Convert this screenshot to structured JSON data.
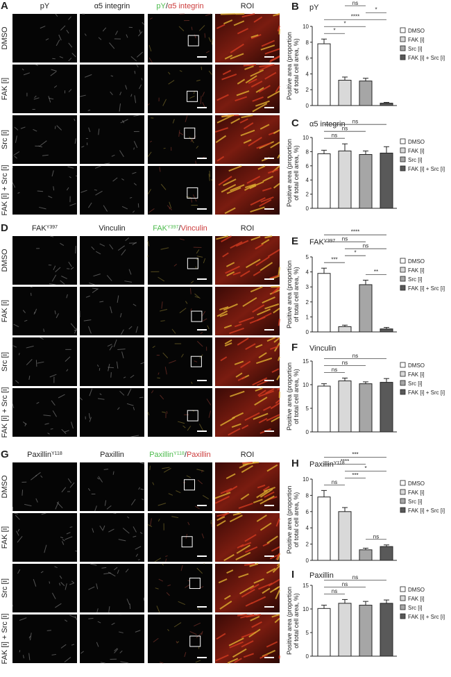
{
  "image_panels": [
    {
      "letter": "A",
      "columns": [
        [
          {
            "text": "pY"
          }
        ],
        [
          {
            "text": "α5 integrin"
          }
        ],
        [
          {
            "text": "pY",
            "color": "#4cbb4c"
          },
          {
            "text": "/"
          },
          {
            "text": "α5 integrin",
            "color": "#cc3b3b"
          }
        ],
        [
          {
            "text": "ROI"
          }
        ]
      ],
      "rows": [
        "DMSO",
        "FAK [i]",
        "Src [i]",
        "FAK [i] + Src [i]"
      ]
    },
    {
      "letter": "D",
      "columns": [
        [
          {
            "text": "FAK"
          },
          {
            "text": "Y397",
            "sup": true
          }
        ],
        [
          {
            "text": "Vinculin"
          }
        ],
        [
          {
            "text": "FAK",
            "color": "#4cbb4c"
          },
          {
            "text": "Y397",
            "sup": true,
            "color": "#4cbb4c"
          },
          {
            "text": "/"
          },
          {
            "text": "Vinculin",
            "color": "#cc3b3b"
          }
        ],
        [
          {
            "text": "ROI"
          }
        ]
      ],
      "rows": [
        "DMSO",
        "FAK [i]",
        "Src [i]",
        "FAK [i] + Src [i]"
      ]
    },
    {
      "letter": "G",
      "columns": [
        [
          {
            "text": "Paxillin"
          },
          {
            "text": "Y118",
            "sup": true
          }
        ],
        [
          {
            "text": "Paxillin"
          }
        ],
        [
          {
            "text": "Paxillin",
            "color": "#4cbb4c"
          },
          {
            "text": "Y118",
            "sup": true,
            "color": "#4cbb4c"
          },
          {
            "text": "/"
          },
          {
            "text": "Paxillin",
            "color": "#cc3b3b"
          }
        ],
        [
          {
            "text": "ROI"
          }
        ]
      ],
      "rows": [
        "DMSO",
        "FAK [i]",
        "Src [i]",
        "FAK [i] + Src [i]"
      ]
    }
  ],
  "chart_data": [
    {
      "type": "bar",
      "letter": "B",
      "title": "pY",
      "ylabel": [
        "Positive area (proportion",
        "of total cell area, %)"
      ],
      "categories": [
        "DMSO",
        "FAK [i]",
        "Src [i]",
        "FAK [i] + Src [i]"
      ],
      "colors": [
        "#ffffff",
        "#d9d9d9",
        "#a6a6a6",
        "#595959"
      ],
      "values": [
        7.8,
        3.2,
        3.1,
        0.3
      ],
      "errors": [
        0.6,
        0.4,
        0.35,
        0.1
      ],
      "ylim": [
        0,
        10
      ],
      "yticks": [
        0,
        2,
        4,
        6,
        8,
        10
      ],
      "brackets": [
        {
          "pair": [
            0,
            1
          ],
          "label": "*"
        },
        {
          "pair": [
            0,
            2
          ],
          "label": "*"
        },
        {
          "pair": [
            0,
            3
          ],
          "label": "****"
        },
        {
          "pair": [
            2,
            3
          ],
          "label": "*"
        },
        {
          "pair": [
            1,
            2
          ],
          "label": "ns"
        },
        {
          "pair": [
            1,
            3
          ],
          "label": "*"
        }
      ]
    },
    {
      "type": "bar",
      "letter": "C",
      "title": "α5 integrin",
      "ylabel": [
        "Positive area (proportion",
        "of total cell area, %)"
      ],
      "categories": [
        "DMSO",
        "FAK [i]",
        "Src [i]",
        "FAK [i] + Src [i]"
      ],
      "colors": [
        "#ffffff",
        "#d9d9d9",
        "#a6a6a6",
        "#595959"
      ],
      "values": [
        7.7,
        8.1,
        7.6,
        7.8
      ],
      "errors": [
        0.5,
        1.0,
        0.5,
        0.9
      ],
      "ylim": [
        0,
        10
      ],
      "yticks": [
        0,
        2,
        4,
        6,
        8,
        10
      ],
      "brackets": [
        {
          "pair": [
            0,
            1
          ],
          "label": "ns"
        },
        {
          "pair": [
            0,
            2
          ],
          "label": "ns"
        },
        {
          "pair": [
            0,
            3
          ],
          "label": "ns"
        }
      ]
    },
    {
      "type": "bar",
      "letter": "E",
      "title": "FAK",
      "title_sup": "Y397",
      "ylabel": [
        "Positive area (proportion",
        "of total cell area, %)"
      ],
      "categories": [
        "DMSO",
        "FAK [i]",
        "Src [i]",
        "FAK [i] + Src [i]"
      ],
      "colors": [
        "#ffffff",
        "#d9d9d9",
        "#a6a6a6",
        "#595959"
      ],
      "values": [
        3.9,
        0.35,
        3.15,
        0.2
      ],
      "errors": [
        0.35,
        0.1,
        0.3,
        0.1
      ],
      "ylim": [
        0,
        5
      ],
      "yticks": [
        0,
        1,
        2,
        3,
        4,
        5
      ],
      "brackets": [
        {
          "pair": [
            0,
            1
          ],
          "label": "***"
        },
        {
          "pair": [
            2,
            3
          ],
          "label": "**"
        },
        {
          "pair": [
            1,
            2
          ],
          "label": "*"
        },
        {
          "pair": [
            1,
            3
          ],
          "label": "ns"
        },
        {
          "pair": [
            0,
            2
          ],
          "label": "ns"
        },
        {
          "pair": [
            0,
            3
          ],
          "label": "****"
        }
      ]
    },
    {
      "type": "bar",
      "letter": "F",
      "title": "Vinculin",
      "ylabel": [
        "Positive area (proportion",
        "of total cell area, %)"
      ],
      "categories": [
        "DMSO",
        "FAK [i]",
        "Src [i]",
        "FAK [i] + Src [i]"
      ],
      "colors": [
        "#ffffff",
        "#d9d9d9",
        "#a6a6a6",
        "#595959"
      ],
      "values": [
        9.7,
        10.8,
        10.2,
        10.5
      ],
      "errors": [
        0.5,
        0.6,
        0.4,
        0.8
      ],
      "ylim": [
        0,
        15
      ],
      "yticks": [
        0,
        5,
        10,
        15
      ],
      "brackets": [
        {
          "pair": [
            0,
            1
          ],
          "label": "ns"
        },
        {
          "pair": [
            0,
            2
          ],
          "label": "ns"
        },
        {
          "pair": [
            0,
            3
          ],
          "label": "ns"
        }
      ]
    },
    {
      "type": "bar",
      "letter": "H",
      "title": "Paxillin",
      "title_sup": "Y118",
      "ylabel": [
        "Positive area (proportion",
        "of total cell area, %)"
      ],
      "categories": [
        "DMSO",
        "FAK [i]",
        "Src [i]",
        "FAK [i] + Src [i]"
      ],
      "colors": [
        "#ffffff",
        "#d9d9d9",
        "#a6a6a6",
        "#595959"
      ],
      "values": [
        7.8,
        6.0,
        1.3,
        1.7
      ],
      "errors": [
        0.8,
        0.5,
        0.2,
        0.2
      ],
      "ylim": [
        0,
        10
      ],
      "yticks": [
        0,
        2,
        4,
        6,
        8,
        10
      ],
      "brackets": [
        {
          "pair": [
            2,
            3
          ],
          "label": "ns"
        },
        {
          "pair": [
            0,
            1
          ],
          "label": "ns"
        },
        {
          "pair": [
            1,
            2
          ],
          "label": "***"
        },
        {
          "pair": [
            1,
            3
          ],
          "label": "*"
        },
        {
          "pair": [
            0,
            2
          ],
          "label": "****"
        },
        {
          "pair": [
            0,
            3
          ],
          "label": "***"
        }
      ]
    },
    {
      "type": "bar",
      "letter": "I",
      "title": "Paxillin",
      "ylabel": [
        "Positive area (proportion",
        "of total cell area, %)"
      ],
      "categories": [
        "DMSO",
        "FAK [i]",
        "Src [i]",
        "FAK [i] + Src [i]"
      ],
      "colors": [
        "#ffffff",
        "#d9d9d9",
        "#a6a6a6",
        "#595959"
      ],
      "values": [
        10.1,
        11.2,
        10.8,
        11.2
      ],
      "errors": [
        0.7,
        0.8,
        0.8,
        0.7
      ],
      "ylim": [
        0,
        15
      ],
      "yticks": [
        0,
        5,
        10,
        15
      ],
      "brackets": [
        {
          "pair": [
            0,
            1
          ],
          "label": "ns"
        },
        {
          "pair": [
            0,
            2
          ],
          "label": "ns"
        },
        {
          "pair": [
            0,
            3
          ],
          "label": "ns"
        }
      ]
    }
  ]
}
